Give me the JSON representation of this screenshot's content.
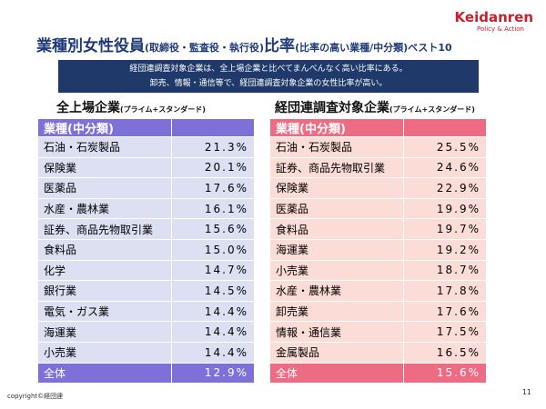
{
  "logo": {
    "name": "Keidanren",
    "tagline": "Policy & Action"
  },
  "title": {
    "main": "業種別女性役員",
    "paren": "(取締役・監査役・執行役)",
    "main2": "比率",
    "sub": "(比率の高い業種/中分類)ベスト10"
  },
  "note": [
    "経団連調査対象企業は、全上場企業と比べてまんべんなく高い比率にある。",
    "卸売、情報・通信等で、経団連調査対象企業の女性比率が高い。"
  ],
  "tables": [
    {
      "heading": "全上場企業",
      "heading_sub": "(プライム+スタンダード)",
      "header": "業種(中分類)",
      "rows": [
        [
          "石油・石炭製品",
          "21.3%"
        ],
        [
          "保険業",
          "20.1%"
        ],
        [
          "医薬品",
          "17.6%"
        ],
        [
          "水産・農林業",
          "16.1%"
        ],
        [
          "証券、商品先物取引業",
          "15.6%"
        ],
        [
          "食料品",
          "15.0%"
        ],
        [
          "化学",
          "14.7%"
        ],
        [
          "銀行業",
          "14.5%"
        ],
        [
          "電気・ガス業",
          "14.4%"
        ],
        [
          "海運業",
          "14.4%"
        ],
        [
          "小売業",
          "14.4%"
        ]
      ],
      "total": [
        "全体",
        "12.9%"
      ]
    },
    {
      "heading": "経団連調査対象企業",
      "heading_sub": "(プライム+スタンダード)",
      "header": "業種(中分類)",
      "rows": [
        [
          "石油・石炭製品",
          "25.5%"
        ],
        [
          "証券、商品先物取引業",
          "24.6%"
        ],
        [
          "保険業",
          "22.9%"
        ],
        [
          "医薬品",
          "19.9%"
        ],
        [
          "食料品",
          "19.7%"
        ],
        [
          "海運業",
          "19.2%"
        ],
        [
          "小売業",
          "18.7%"
        ],
        [
          "水産・農林業",
          "17.8%"
        ],
        [
          "卸売業",
          "17.6%"
        ],
        [
          "情報・通信業",
          "17.5%"
        ],
        [
          "金属製品",
          "16.5%"
        ]
      ],
      "total": [
        "全体",
        "15.6%"
      ]
    }
  ],
  "footer": {
    "copyright": "copyright©経団連",
    "page": "11"
  }
}
